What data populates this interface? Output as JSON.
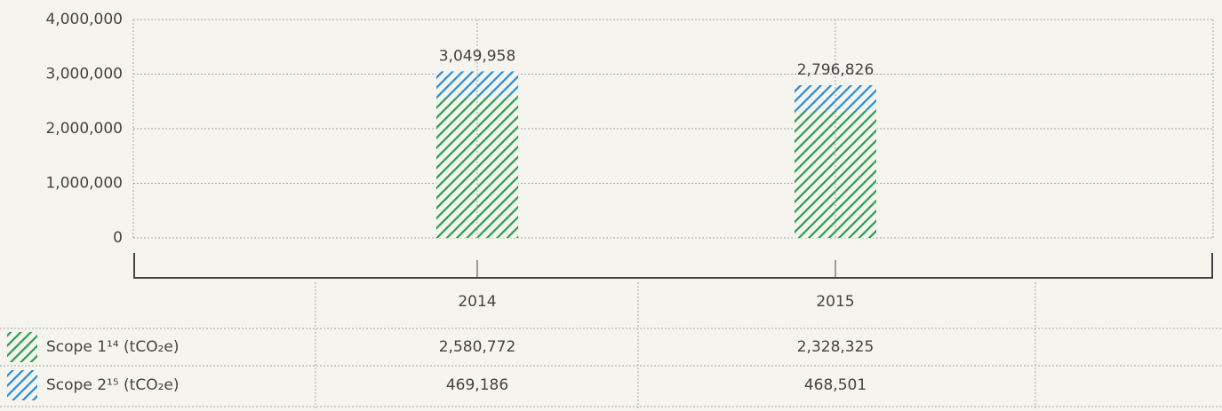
{
  "chart_data": {
    "type": "stacked_bar",
    "categories": [
      "2014",
      "2015"
    ],
    "series": [
      {
        "name": "Scope 1¹⁴ (tCO₂e)",
        "color": "#2e9e4f",
        "values": [
          2580772,
          2328325
        ],
        "value_labels": [
          "2,580,772",
          "2,328,325"
        ]
      },
      {
        "name": "Scope 2¹⁵ (tCO₂e)",
        "color": "#2a8fd6",
        "values": [
          469186,
          468501
        ],
        "value_labels": [
          "469,186",
          "468,501"
        ]
      }
    ],
    "totals": {
      "values": [
        3049958,
        2796826
      ],
      "value_labels": [
        "3,049,958",
        "2,796,826"
      ]
    },
    "ylim": [
      0,
      4000000
    ],
    "yticks": [
      0,
      {
        "value": 1000000,
        "label": "1,000,000"
      },
      {
        "value": 2000000,
        "label": "2,000,000"
      },
      {
        "value": 3000000,
        "label": "3,000,000"
      },
      {
        "value": 4000000,
        "label": "4,000,000"
      }
    ],
    "grid": true
  }
}
